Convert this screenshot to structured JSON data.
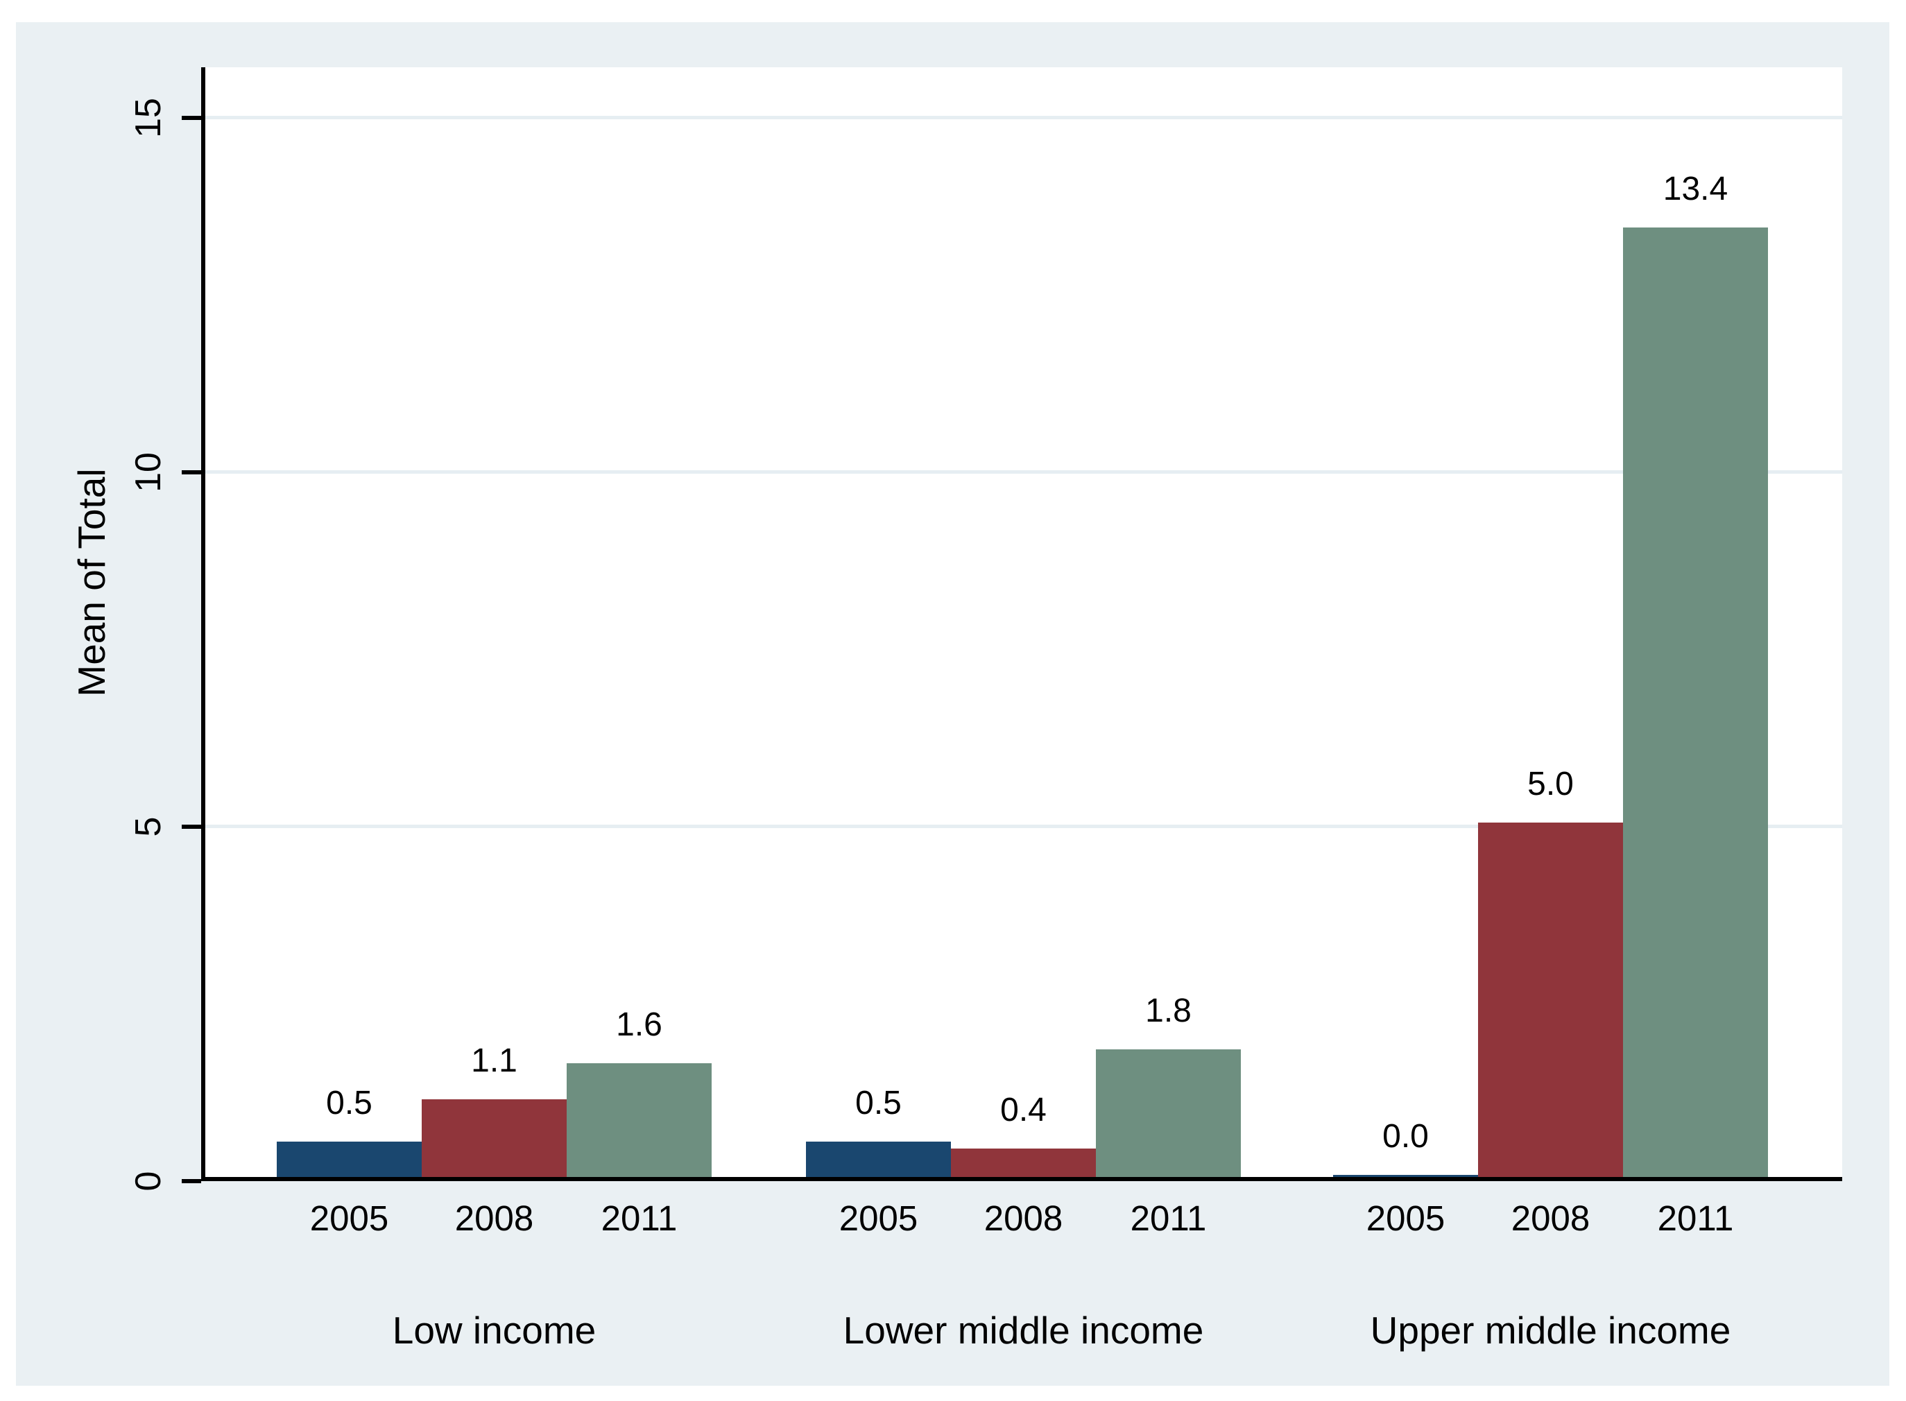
{
  "figure": {
    "background_color": "#eaf0f3",
    "plot_background_color": "#ffffff",
    "grid_color": "#e6eef2",
    "axis_color": "#000000",
    "text_color": "#000000"
  },
  "chart_data": {
    "type": "bar",
    "title": "",
    "xlabel": "",
    "ylabel": "Mean of Total",
    "ylim": [
      0,
      15
    ],
    "grid": true,
    "legend_position": "none",
    "yticks": [
      {
        "value": 0,
        "label": "0"
      },
      {
        "value": 5,
        "label": "5"
      },
      {
        "value": 10,
        "label": "10"
      },
      {
        "value": 15,
        "label": "15"
      }
    ],
    "categories": [
      "2005",
      "2008",
      "2011"
    ],
    "category_colors": [
      "#1a476f",
      "#90353b",
      "#6e8f80"
    ],
    "groups": [
      {
        "label": "Low income",
        "values": [
          0.5,
          1.1,
          1.6
        ],
        "value_labels": [
          "0.5",
          "1.1",
          "1.6"
        ]
      },
      {
        "label": "Lower middle income",
        "values": [
          0.5,
          0.4,
          1.8
        ],
        "value_labels": [
          "0.5",
          "0.4",
          "1.8"
        ]
      },
      {
        "label": "Upper middle income",
        "values": [
          0.0,
          5.0,
          13.4
        ],
        "value_labels": [
          "0.0",
          "5.0",
          "13.4"
        ]
      }
    ]
  }
}
